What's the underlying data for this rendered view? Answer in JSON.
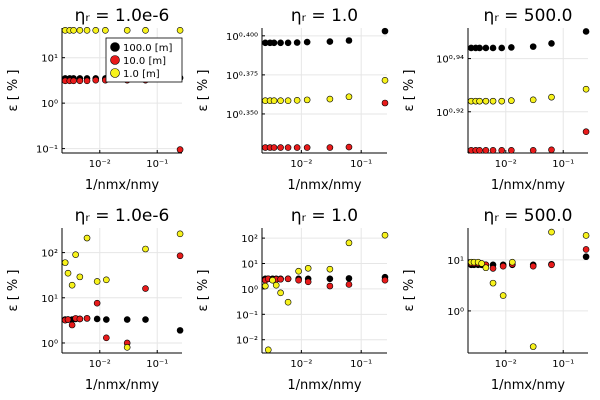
{
  "chart_data": [
    {
      "type": "scatter",
      "title": "ηᵣ = 1.0e-6",
      "xlabel": "1/nmx/nmy",
      "ylabel": "ε [ % ]",
      "xscale": "log",
      "yscale": "log",
      "xlim": [
        0.0022,
        0.27
      ],
      "ylim": [
        0.08,
        45
      ],
      "xticks": [
        {
          "value": 0.01,
          "label": "10⁻²"
        },
        {
          "value": 0.1,
          "label": "10⁻¹"
        }
      ],
      "yticks": [
        {
          "value": 0.1,
          "label": "10⁻¹"
        },
        {
          "value": 1,
          "label": "10⁰"
        },
        {
          "value": 10,
          "label": "10¹"
        }
      ],
      "grid": true,
      "legend_position": "top-right",
      "series": [
        {
          "name": "100.0 [m]",
          "color": "#000000",
          "x": [
            0.0025,
            0.003,
            0.0035,
            0.0045,
            0.006,
            0.0085,
            0.0125,
            0.03,
            0.0625,
            0.25
          ],
          "y": [
            3.5,
            3.5,
            3.5,
            3.5,
            3.5,
            3.5,
            3.5,
            3.5,
            3.5,
            3.6
          ]
        },
        {
          "name": "10.0 [m]",
          "color": "#e81b1b",
          "x": [
            0.0025,
            0.003,
            0.0035,
            0.0045,
            0.006,
            0.0085,
            0.0125,
            0.03,
            0.0625,
            0.25
          ],
          "y": [
            3.1,
            3.1,
            3.1,
            3.1,
            3.1,
            3.2,
            3.2,
            3.2,
            3.2,
            0.095
          ]
        },
        {
          "name": "1.0 [m]",
          "color": "#f7f21c",
          "x": [
            0.0025,
            0.003,
            0.0035,
            0.0045,
            0.006,
            0.0085,
            0.0125,
            0.03,
            0.0625,
            0.25
          ],
          "y": [
            40,
            40,
            40,
            40,
            40,
            40,
            40,
            40,
            40,
            40
          ]
        }
      ]
    },
    {
      "type": "scatter",
      "title": "ηᵣ = 1.0",
      "xlabel": "1/nmx/nmy",
      "ylabel": "ε [ % ]",
      "xscale": "log",
      "yscale": "linear",
      "xlim": [
        0.0022,
        0.27
      ],
      "ylim": [
        0.325,
        0.405
      ],
      "xticks": [
        {
          "value": 0.01,
          "label": "10⁻²"
        },
        {
          "value": 0.1,
          "label": "10⁻¹"
        }
      ],
      "yticks": [
        {
          "value": 0.35,
          "label": "10⁰·³⁵⁰"
        },
        {
          "value": 0.375,
          "label": "10⁰·³⁷⁵"
        },
        {
          "value": 0.4,
          "label": "10⁰·⁴⁰⁰"
        }
      ],
      "grid": true,
      "series": [
        {
          "name": "100.0 [m]",
          "color": "#000000",
          "x": [
            0.0025,
            0.003,
            0.0035,
            0.0045,
            0.006,
            0.0085,
            0.0125,
            0.03,
            0.0625,
            0.25
          ],
          "y": [
            0.3955,
            0.3955,
            0.3955,
            0.3955,
            0.3955,
            0.3957,
            0.396,
            0.3963,
            0.397,
            0.403
          ]
        },
        {
          "name": "10.0 [m]",
          "color": "#e81b1b",
          "x": [
            0.0025,
            0.003,
            0.0035,
            0.0045,
            0.006,
            0.0085,
            0.0125,
            0.03,
            0.0625,
            0.25
          ],
          "y": [
            0.3285,
            0.3285,
            0.3285,
            0.3285,
            0.3285,
            0.3285,
            0.3285,
            0.3285,
            0.3288,
            0.357
          ]
        },
        {
          "name": "1.0 [m]",
          "color": "#f7f21c",
          "x": [
            0.0025,
            0.003,
            0.0035,
            0.0045,
            0.006,
            0.0085,
            0.0125,
            0.03,
            0.0625,
            0.25
          ],
          "y": [
            0.3585,
            0.3585,
            0.3585,
            0.3585,
            0.3585,
            0.3587,
            0.359,
            0.3595,
            0.361,
            0.3715
          ]
        }
      ]
    },
    {
      "type": "scatter",
      "title": "ηᵣ = 500.0",
      "xlabel": "1/nmx/nmy",
      "ylabel": "ε [ % ]",
      "xscale": "log",
      "yscale": "linear",
      "xlim": [
        0.0022,
        0.27
      ],
      "ylim": [
        0.9045,
        0.9515
      ],
      "xticks": [
        {
          "value": 0.01,
          "label": "10⁻²"
        },
        {
          "value": 0.1,
          "label": "10⁻¹"
        }
      ],
      "yticks": [
        {
          "value": 0.92,
          "label": "10⁰·⁹²"
        },
        {
          "value": 0.94,
          "label": "10⁰·⁹⁴"
        }
      ],
      "grid": true,
      "series": [
        {
          "name": "100.0 [m]",
          "color": "#000000",
          "x": [
            0.0025,
            0.003,
            0.0035,
            0.0045,
            0.006,
            0.0085,
            0.0125,
            0.03,
            0.0625,
            0.25
          ],
          "y": [
            0.944,
            0.944,
            0.944,
            0.944,
            0.944,
            0.944,
            0.9442,
            0.9445,
            0.9457,
            0.9502
          ]
        },
        {
          "name": "10.0 [m]",
          "color": "#e81b1b",
          "x": [
            0.0025,
            0.003,
            0.0035,
            0.0045,
            0.006,
            0.0085,
            0.0125,
            0.03,
            0.0625,
            0.25
          ],
          "y": [
            0.9055,
            0.9055,
            0.9055,
            0.9055,
            0.9055,
            0.9055,
            0.9055,
            0.9055,
            0.9057,
            0.9125
          ]
        },
        {
          "name": "1.0 [m]",
          "color": "#f7f21c",
          "x": [
            0.0025,
            0.003,
            0.0035,
            0.0045,
            0.006,
            0.0085,
            0.0125,
            0.03,
            0.0625,
            0.25
          ],
          "y": [
            0.924,
            0.924,
            0.924,
            0.924,
            0.924,
            0.924,
            0.9242,
            0.9245,
            0.9255,
            0.9285
          ]
        }
      ]
    },
    {
      "type": "scatter",
      "title": "ηᵣ = 1.0e-6",
      "xlabel": "1/nmx/nmy",
      "ylabel": "ε [ % ]",
      "xscale": "log",
      "yscale": "log",
      "xlim": [
        0.0022,
        0.27
      ],
      "ylim": [
        0.6,
        350
      ],
      "xticks": [
        {
          "value": 0.01,
          "label": "10⁻²"
        },
        {
          "value": 0.1,
          "label": "10⁻¹"
        }
      ],
      "yticks": [
        {
          "value": 1,
          "label": "10⁰"
        },
        {
          "value": 10,
          "label": "10¹"
        },
        {
          "value": 100,
          "label": "10²"
        }
      ],
      "grid": true,
      "series": [
        {
          "name": "100.0 [m]",
          "color": "#000000",
          "x": [
            0.0025,
            0.0028,
            0.0033,
            0.0038,
            0.0045,
            0.006,
            0.009,
            0.013,
            0.03,
            0.0625,
            0.25
          ],
          "y": [
            3.3,
            3.3,
            3.3,
            3.4,
            3.4,
            3.5,
            3.4,
            3.3,
            3.3,
            3.3,
            1.9
          ]
        },
        {
          "name": "10.0 [m]",
          "color": "#e81b1b",
          "x": [
            0.0025,
            0.0028,
            0.0033,
            0.0038,
            0.0045,
            0.006,
            0.009,
            0.013,
            0.03,
            0.0625,
            0.25
          ],
          "y": [
            3.2,
            3.3,
            2.5,
            3.5,
            3.4,
            3.5,
            7.6,
            1.3,
            1.0,
            16,
            85
          ]
        },
        {
          "name": "1.0 [m]",
          "color": "#f7f21c",
          "x": [
            0.0025,
            0.0028,
            0.0033,
            0.0038,
            0.0045,
            0.006,
            0.009,
            0.013,
            0.03,
            0.0625,
            0.25
          ],
          "y": [
            60,
            35,
            19,
            90,
            29,
            210,
            23,
            25,
            0.8,
            120,
            260
          ]
        }
      ]
    },
    {
      "type": "scatter",
      "title": "ηᵣ = 1.0",
      "xlabel": "1/nmx/nmy",
      "ylabel": "ε [ % ]",
      "xscale": "log",
      "yscale": "log",
      "xlim": [
        0.0022,
        0.27
      ],
      "ylim": [
        0.003,
        250
      ],
      "xticks": [
        {
          "value": 0.01,
          "label": "10⁻²"
        },
        {
          "value": 0.1,
          "label": "10⁻¹"
        }
      ],
      "yticks": [
        {
          "value": 0.01,
          "label": "10⁻²"
        },
        {
          "value": 0.1,
          "label": "10⁻¹"
        },
        {
          "value": 1,
          "label": "10⁰"
        },
        {
          "value": 10,
          "label": "10¹"
        },
        {
          "value": 100,
          "label": "10²"
        }
      ],
      "grid": true,
      "series": [
        {
          "name": "100.0 [m]",
          "color": "#000000",
          "x": [
            0.0025,
            0.0028,
            0.0033,
            0.0038,
            0.0045,
            0.006,
            0.009,
            0.013,
            0.03,
            0.0625,
            0.25
          ],
          "y": [
            2.5,
            2.5,
            2.5,
            2.5,
            2.5,
            2.5,
            2.5,
            2.5,
            2.5,
            2.6,
            2.9
          ]
        },
        {
          "name": "10.0 [m]",
          "color": "#e81b1b",
          "x": [
            0.0025,
            0.0028,
            0.0033,
            0.0038,
            0.0045,
            0.006,
            0.009,
            0.013,
            0.03,
            0.0625,
            0.25
          ],
          "y": [
            2.2,
            2.5,
            2.3,
            2.4,
            2.4,
            2.5,
            2.2,
            1.9,
            1.3,
            1.5,
            2.2
          ]
        },
        {
          "name": "1.0 [m]",
          "color": "#f7f21c",
          "x": [
            0.0025,
            0.0028,
            0.0033,
            0.0038,
            0.0045,
            0.006,
            0.009,
            0.013,
            0.03,
            0.0625,
            0.25
          ],
          "y": [
            1.3,
            0.004,
            2.2,
            1.4,
            0.7,
            0.3,
            5.0,
            6.5,
            6.0,
            65,
            130
          ]
        }
      ]
    },
    {
      "type": "scatter",
      "title": "ηᵣ = 500.0",
      "xlabel": "1/nmx/nmy",
      "ylabel": "ε [ % ]",
      "xscale": "log",
      "yscale": "log",
      "xlim": [
        0.0022,
        0.27
      ],
      "ylim": [
        0.15,
        42
      ],
      "xticks": [
        {
          "value": 0.01,
          "label": "10⁻²"
        },
        {
          "value": 0.1,
          "label": "10⁻¹"
        }
      ],
      "yticks": [
        {
          "value": 1,
          "label": "10⁰"
        },
        {
          "value": 10,
          "label": "10¹"
        }
      ],
      "grid": true,
      "series": [
        {
          "name": "100.0 [m]",
          "color": "#000000",
          "x": [
            0.0025,
            0.0028,
            0.0033,
            0.0038,
            0.0045,
            0.006,
            0.009,
            0.013,
            0.03,
            0.0625,
            0.25
          ],
          "y": [
            8.0,
            8.0,
            8.0,
            8.0,
            8.0,
            8.0,
            8.0,
            8.0,
            8.0,
            8.2,
            11.5
          ]
        },
        {
          "name": "10.0 [m]",
          "color": "#e81b1b",
          "x": [
            0.0025,
            0.0028,
            0.0033,
            0.0038,
            0.0045,
            0.006,
            0.009,
            0.013,
            0.03,
            0.0625,
            0.25
          ],
          "y": [
            8.5,
            8.5,
            8.5,
            8.3,
            8.0,
            6.8,
            7.5,
            8.2,
            7.5,
            8.0,
            16
          ]
        },
        {
          "name": "1.0 [m]",
          "color": "#f7f21c",
          "x": [
            0.0025,
            0.0028,
            0.0033,
            0.0038,
            0.0045,
            0.006,
            0.009,
            0.013,
            0.03,
            0.0625,
            0.25
          ],
          "y": [
            9.0,
            9.0,
            9.0,
            8.5,
            7.0,
            3.5,
            2.0,
            9.0,
            0.2,
            35,
            30
          ]
        }
      ]
    }
  ]
}
